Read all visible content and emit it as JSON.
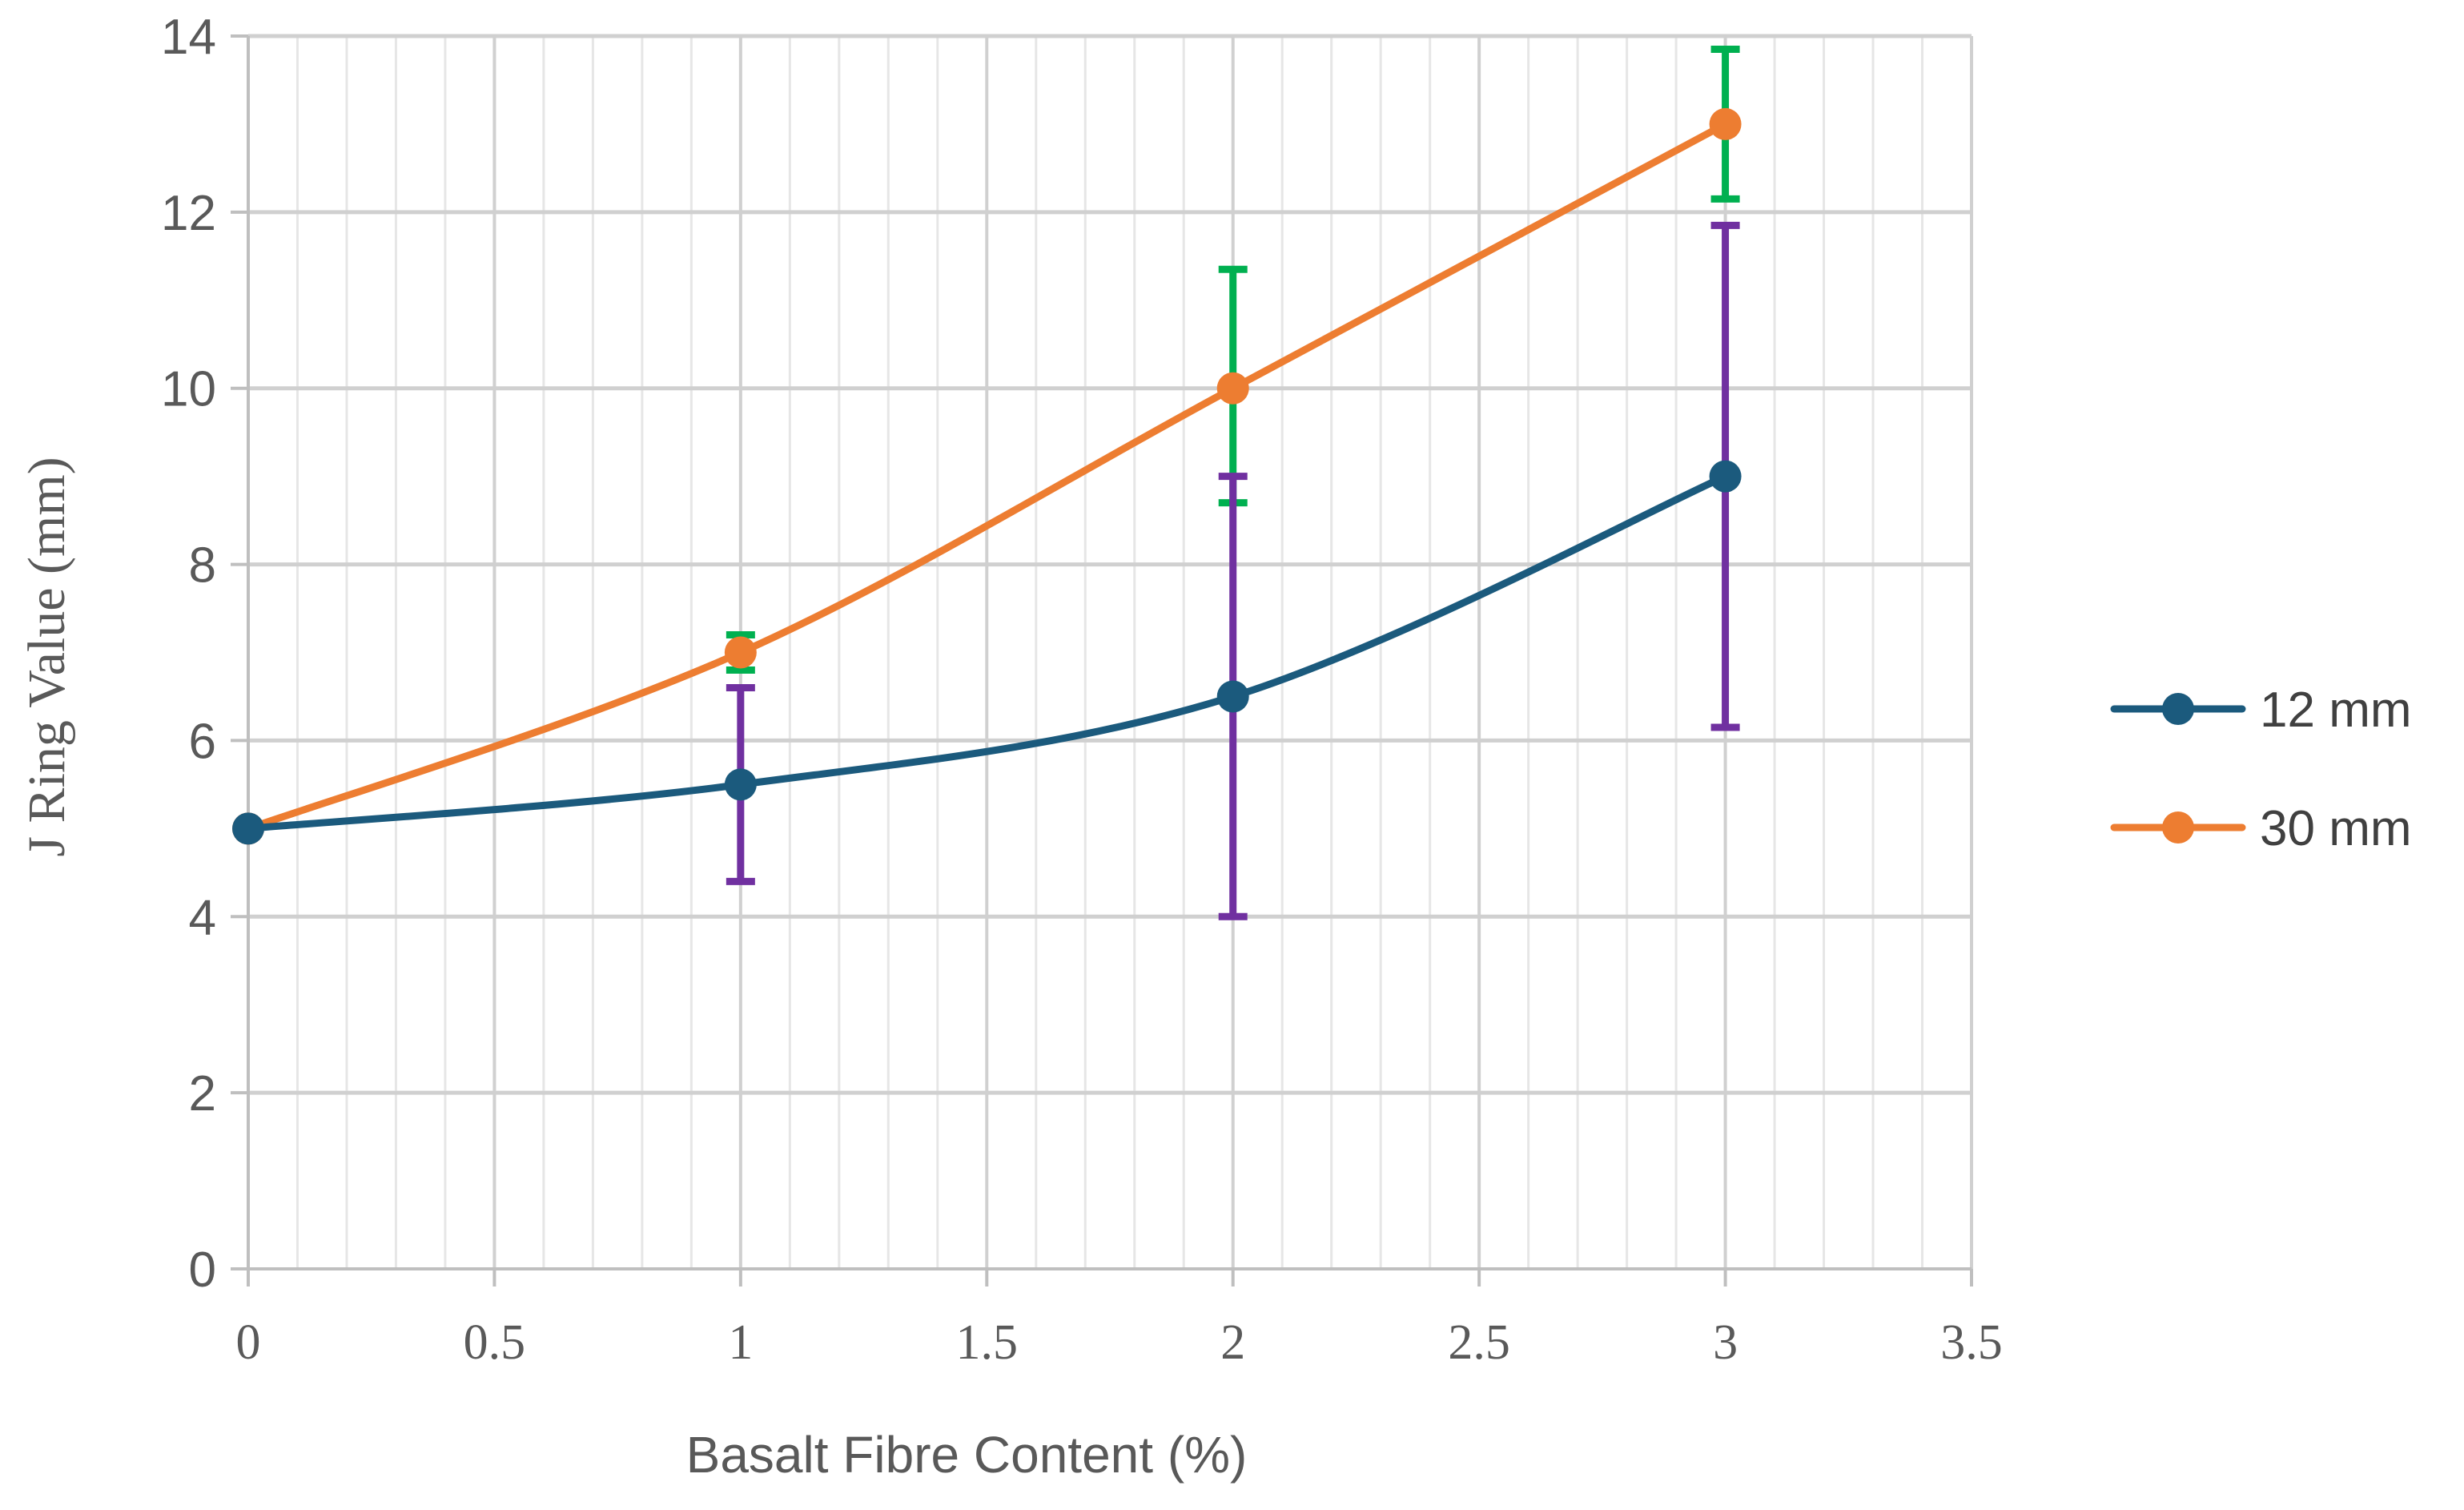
{
  "chart_data": {
    "type": "line",
    "title": "",
    "xlabel": "Basalt Fibre Content (%)",
    "ylabel": "J Ring Value (mm)",
    "xlim": [
      0,
      3.5
    ],
    "ylim": [
      0,
      14
    ],
    "x_ticks": [
      "0",
      "0.5",
      "1",
      "1.5",
      "2",
      "2.5",
      "3",
      "3.5"
    ],
    "y_ticks": [
      "0",
      "2",
      "4",
      "6",
      "8",
      "10",
      "12",
      "14"
    ],
    "x_tick_values": [
      0,
      0.5,
      1,
      1.5,
      2,
      2.5,
      3,
      3.5
    ],
    "y_tick_values": [
      0,
      2,
      4,
      6,
      8,
      10,
      12,
      14
    ],
    "x_minor_step": 0.1,
    "grid": true,
    "legend_position": "right",
    "smoothed": true,
    "series": [
      {
        "name": "12 mm",
        "color": "#1b5a7d",
        "error_bar_color": "#7030a0",
        "x": [
          0,
          1,
          2,
          3
        ],
        "y": [
          5,
          5.5,
          6.5,
          9
        ],
        "y_err_upper": [
          null,
          6.6,
          9.0,
          11.85
        ],
        "y_err_lower": [
          null,
          4.4,
          4.0,
          6.15
        ]
      },
      {
        "name": "30 mm",
        "color": "#ed7d31",
        "error_bar_color": "#00b050",
        "x": [
          0,
          1,
          2,
          3
        ],
        "y": [
          5,
          7,
          10,
          13
        ],
        "y_err_upper": [
          null,
          7.2,
          11.35,
          13.85
        ],
        "y_err_lower": [
          null,
          6.8,
          8.7,
          12.15
        ]
      }
    ]
  }
}
